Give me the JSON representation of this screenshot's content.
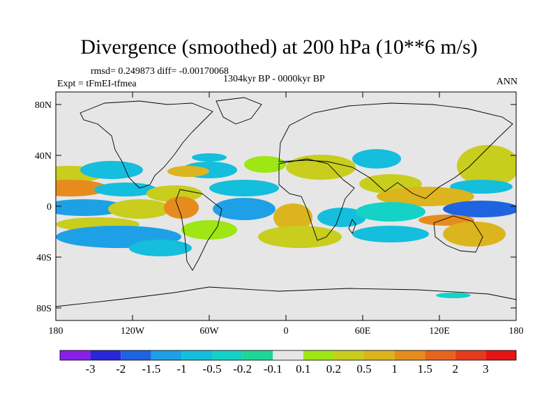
{
  "title": "Divergence (smoothed) at 200 hPa (10**6 m/s)",
  "stats": "rmsd= 0.249873  diff= -0.00170068",
  "experiment": "Expt = tFmEI-tfmea",
  "period": "1304kyr BP - 0000kyr BP",
  "season": "ANN",
  "y_ticks": [
    "80N",
    "40N",
    "0",
    "40S",
    "80S"
  ],
  "x_ticks": [
    "180",
    "120W",
    "60W",
    "0",
    "60E",
    "120E",
    "180"
  ],
  "colorbar": {
    "labels": [
      "-3",
      "-2",
      "-1.5",
      "-1",
      "-0.5",
      "-0.2",
      "-0.1",
      "0.1",
      "0.2",
      "0.5",
      "1",
      "1.5",
      "2",
      "3"
    ],
    "colors": [
      "#8a1fe8",
      "#2828d8",
      "#1e64e0",
      "#1ea0e6",
      "#14bedc",
      "#14d2c8",
      "#1ed796",
      "#e6e6e6",
      "#9ee614",
      "#c8cd1e",
      "#dcb41e",
      "#e68c1e",
      "#e6641e",
      "#e63c1e",
      "#e61414"
    ]
  },
  "colors": {
    "background": "#e6e6e6",
    "land_outline": "#000000"
  }
}
